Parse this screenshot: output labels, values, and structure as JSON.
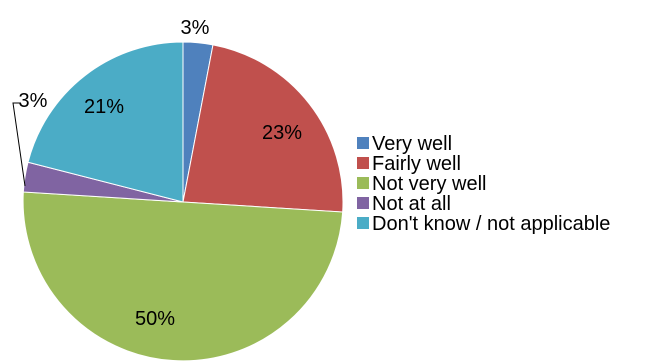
{
  "chart_data": {
    "type": "pie",
    "title": "",
    "legend_position": "right",
    "slices": [
      {
        "label": "Very well",
        "value": 3,
        "display": "3%",
        "color": "#4f81bd"
      },
      {
        "label": "Fairly well",
        "value": 23,
        "display": "23%",
        "color": "#c0504d"
      },
      {
        "label": "Not very well",
        "value": 50,
        "display": "50%",
        "color": "#9bbb59"
      },
      {
        "label": "Not at all",
        "value": 3,
        "display": "3%",
        "color": "#8064a2"
      },
      {
        "label": "Don't know / not applicable",
        "value": 21,
        "display": "21%",
        "color": "#4bacc6"
      }
    ]
  }
}
